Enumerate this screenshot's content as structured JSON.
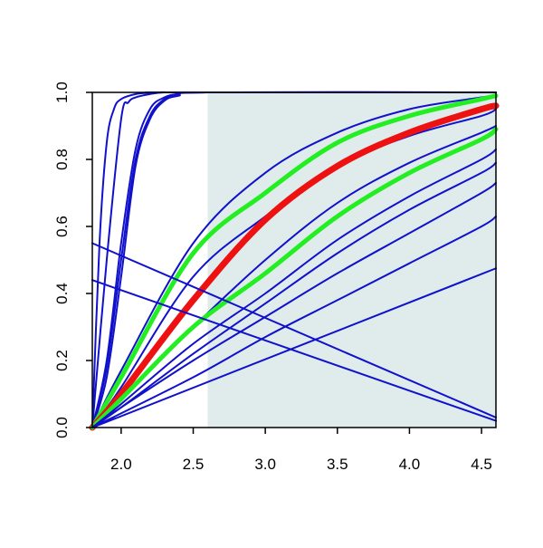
{
  "chart_data": {
    "type": "line",
    "title": "",
    "xlabel": "",
    "ylabel": "",
    "xlim": [
      1.8,
      4.6
    ],
    "ylim": [
      0.0,
      1.0
    ],
    "x_ticks": [
      "2.0",
      "2.5",
      "3.0",
      "3.5",
      "4.0",
      "4.5"
    ],
    "y_ticks": [
      "0.0",
      "0.2",
      "0.4",
      "0.6",
      "0.8",
      "1.0"
    ],
    "shaded_region": {
      "x_from": 2.6,
      "x_to": 4.6,
      "color": "#e0ecec"
    },
    "grid": false,
    "legend": "none",
    "colors": {
      "blue": "#1111cc",
      "green": "#22ee22",
      "red": "#ee1111",
      "axis": "#000000"
    },
    "series": [
      {
        "color": "blue",
        "width": 2,
        "x": [
          1.8,
          1.85,
          1.9,
          1.95,
          2.0,
          2.1,
          2.2,
          2.4,
          4.6
        ],
        "y": [
          0.0,
          0.55,
          0.85,
          0.95,
          0.98,
          0.995,
          0.999,
          1.0,
          1.0
        ]
      },
      {
        "color": "blue",
        "width": 2,
        "x": [
          1.8,
          1.9,
          2.0,
          2.05,
          2.1,
          2.2,
          2.3,
          2.5,
          4.6
        ],
        "y": [
          0.0,
          0.5,
          0.92,
          0.97,
          0.985,
          0.995,
          1.0,
          1.0,
          1.0
        ]
      },
      {
        "color": "blue",
        "width": 2,
        "x": [
          1.8,
          1.9,
          2.0,
          2.1,
          2.2,
          2.3,
          2.4,
          2.6,
          4.6
        ],
        "y": [
          0.0,
          0.2,
          0.55,
          0.83,
          0.95,
          0.985,
          0.995,
          1.0,
          1.0
        ]
      },
      {
        "color": "blue",
        "width": 2,
        "x": [
          1.8,
          1.9,
          2.0,
          2.1,
          2.2,
          2.3,
          2.4,
          2.6,
          4.6
        ],
        "y": [
          0.0,
          0.18,
          0.5,
          0.8,
          0.93,
          0.98,
          0.995,
          1.0,
          1.0
        ]
      },
      {
        "color": "blue",
        "width": 2,
        "x": [
          1.8,
          1.9,
          2.0,
          2.1,
          2.2,
          2.3,
          2.4,
          2.6,
          4.6
        ],
        "y": [
          0.0,
          0.15,
          0.45,
          0.78,
          0.92,
          0.975,
          0.99,
          1.0,
          1.0
        ]
      },
      {
        "color": "blue",
        "width": 2,
        "x": [
          1.8,
          2.0,
          2.5,
          3.0,
          3.5,
          4.0,
          4.5,
          4.6
        ],
        "y": [
          0.0,
          0.17,
          0.55,
          0.76,
          0.88,
          0.95,
          0.985,
          0.99
        ]
      },
      {
        "color": "green",
        "width": 5,
        "x": [
          1.8,
          2.0,
          2.5,
          3.0,
          3.5,
          4.0,
          4.5,
          4.6
        ],
        "y": [
          0.0,
          0.15,
          0.52,
          0.7,
          0.85,
          0.93,
          0.98,
          0.99
        ]
      },
      {
        "color": "blue",
        "width": 2,
        "x": [
          1.8,
          2.0,
          2.5,
          3.0,
          3.5,
          4.0,
          4.5,
          4.6
        ],
        "y": [
          0.0,
          0.12,
          0.45,
          0.63,
          0.78,
          0.87,
          0.93,
          0.95
        ]
      },
      {
        "color": "red",
        "width": 7,
        "x": [
          1.8,
          2.0,
          2.5,
          3.0,
          3.5,
          4.0,
          4.5,
          4.6
        ],
        "y": [
          0.0,
          0.1,
          0.38,
          0.62,
          0.78,
          0.88,
          0.95,
          0.96
        ]
      },
      {
        "color": "blue",
        "width": 2,
        "x": [
          1.8,
          2.0,
          2.5,
          3.0,
          3.5,
          4.0,
          4.5,
          4.6
        ],
        "y": [
          0.0,
          0.085,
          0.3,
          0.5,
          0.67,
          0.79,
          0.88,
          0.9
        ]
      },
      {
        "color": "green",
        "width": 5,
        "x": [
          1.8,
          2.0,
          2.5,
          3.0,
          3.5,
          4.0,
          4.5,
          4.6
        ],
        "y": [
          0.0,
          0.085,
          0.3,
          0.46,
          0.63,
          0.76,
          0.86,
          0.89
        ]
      },
      {
        "color": "blue",
        "width": 2,
        "x": [
          1.8,
          2.0,
          2.5,
          3.0,
          3.5,
          4.0,
          4.5,
          4.6
        ],
        "y": [
          0.0,
          0.07,
          0.25,
          0.4,
          0.56,
          0.69,
          0.8,
          0.83
        ]
      },
      {
        "color": "blue",
        "width": 2,
        "x": [
          1.8,
          2.0,
          2.5,
          3.0,
          3.5,
          4.0,
          4.5,
          4.6
        ],
        "y": [
          0.0,
          0.06,
          0.22,
          0.37,
          0.52,
          0.65,
          0.76,
          0.79
        ]
      },
      {
        "color": "blue",
        "width": 2,
        "x": [
          1.8,
          2.0,
          2.5,
          3.0,
          3.5,
          4.0,
          4.5,
          4.6
        ],
        "y": [
          0.0,
          0.06,
          0.2,
          0.33,
          0.46,
          0.58,
          0.7,
          0.73
        ]
      },
      {
        "color": "blue",
        "width": 2,
        "x": [
          1.8,
          2.5,
          3.0,
          3.5,
          4.0,
          4.5,
          4.6
        ],
        "y": [
          0.0,
          0.15,
          0.27,
          0.38,
          0.49,
          0.6,
          0.63
        ]
      },
      {
        "color": "blue",
        "width": 2,
        "x": [
          1.8,
          4.6
        ],
        "y": [
          0.0,
          0.475
        ]
      },
      {
        "color": "blue",
        "width": 2,
        "x": [
          1.8,
          4.6
        ],
        "y": [
          0.55,
          0.03
        ]
      },
      {
        "color": "blue",
        "width": 2,
        "x": [
          1.8,
          4.6
        ],
        "y": [
          0.44,
          0.02
        ]
      }
    ]
  }
}
